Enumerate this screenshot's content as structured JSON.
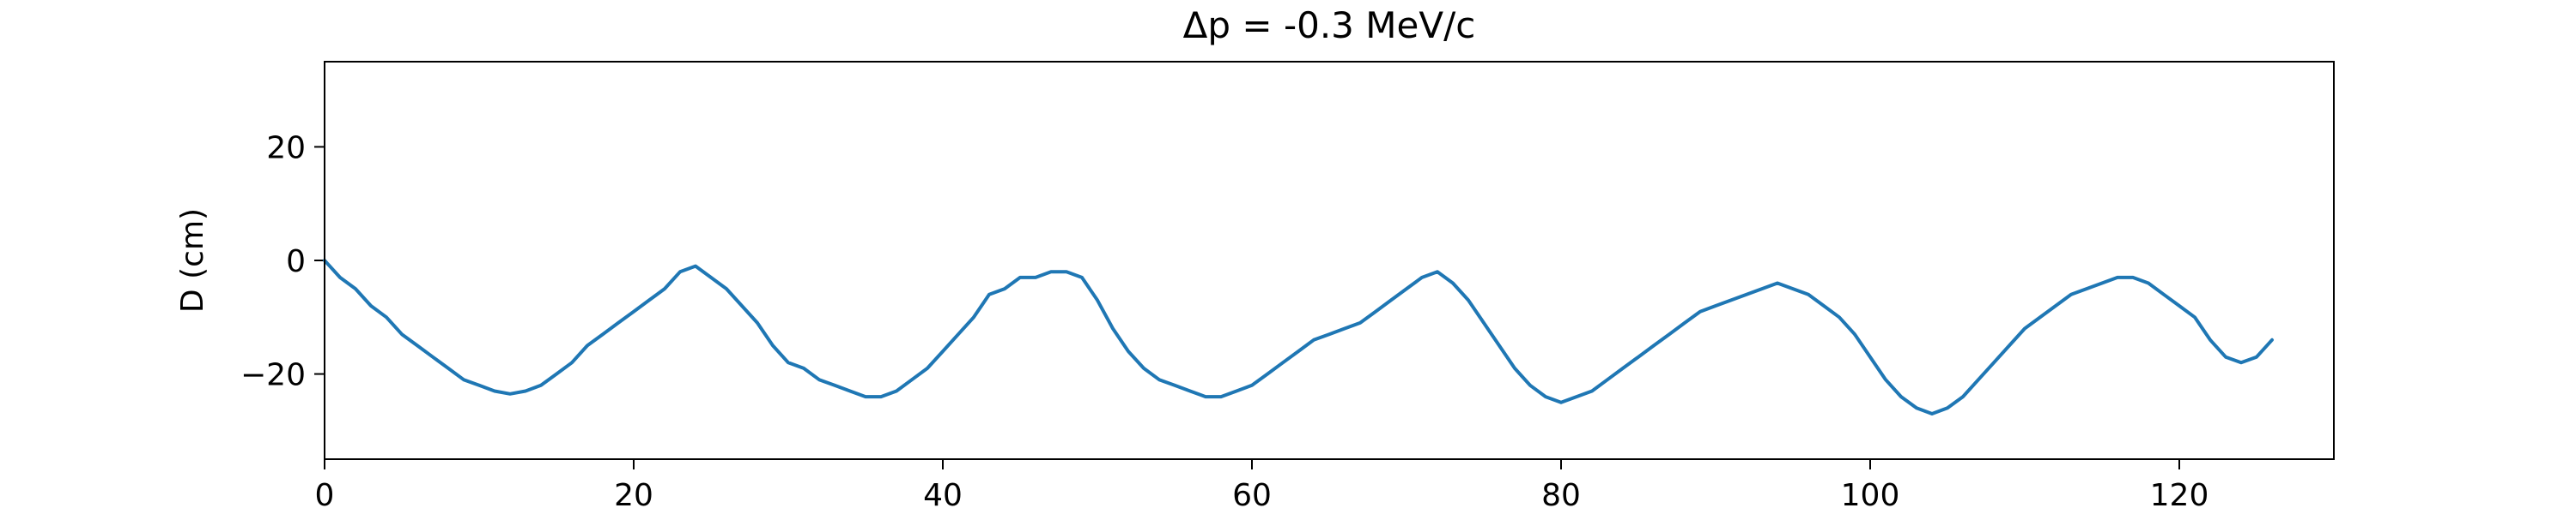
{
  "chart_data": {
    "type": "line",
    "title": "Δp = -0.3 MeV/c",
    "xlabel": "",
    "ylabel": "D (cm)",
    "xlim": [
      0,
      130
    ],
    "ylim": [
      -35,
      35
    ],
    "xticks": [
      0,
      20,
      40,
      60,
      80,
      100,
      120
    ],
    "xtick_labels": [
      "0",
      "20",
      "40",
      "60",
      "80",
      "100",
      "120"
    ],
    "yticks": [
      -20,
      0,
      20
    ],
    "ytick_labels": [
      "−20",
      "0",
      "20"
    ],
    "grid": false,
    "legend": "none",
    "series": [
      {
        "color": "#1f77b4",
        "x": [
          0,
          1,
          2,
          3,
          4,
          5,
          6,
          7,
          8,
          9,
          10,
          11,
          12,
          13,
          14,
          15,
          16,
          17,
          18,
          19,
          20,
          21,
          22,
          23,
          24,
          25,
          26,
          27,
          28,
          29,
          30,
          31,
          32,
          33,
          34,
          35,
          36,
          37,
          38,
          39,
          40,
          41,
          42,
          43,
          44,
          45,
          46,
          47,
          48,
          49,
          50,
          51,
          52,
          53,
          54,
          55,
          56,
          57,
          58,
          59,
          60,
          61,
          62,
          63,
          64,
          65,
          66,
          67,
          68,
          69,
          70,
          71,
          72,
          73,
          74,
          75,
          76,
          77,
          78,
          79,
          80,
          81,
          82,
          83,
          84,
          85,
          86,
          87,
          88,
          89,
          90,
          91,
          92,
          93,
          94,
          95,
          96,
          97,
          98,
          99,
          100,
          101,
          102,
          103,
          104,
          105,
          106,
          107,
          108,
          109,
          110,
          111,
          112,
          113,
          114,
          115,
          116,
          117,
          118,
          119,
          120,
          121,
          122,
          123,
          124,
          125,
          126
        ],
        "y": [
          0,
          -3,
          -5,
          -8,
          -10,
          -13,
          -15,
          -17,
          -19,
          -21,
          -22,
          -23,
          -23.5,
          -23,
          -22,
          -20,
          -18,
          -15,
          -13,
          -11,
          -9,
          -7,
          -5,
          -2,
          -1,
          -3,
          -5,
          -8,
          -11,
          -15,
          -18,
          -19,
          -21,
          -22,
          -23,
          -24,
          -24,
          -23,
          -21,
          -19,
          -16,
          -13,
          -10,
          -6,
          -5,
          -3,
          -3,
          -2,
          -2,
          -3,
          -7,
          -12,
          -16,
          -19,
          -21,
          -22,
          -23,
          -24,
          -24,
          -23,
          -22,
          -20,
          -18,
          -16,
          -14,
          -13,
          -12,
          -11,
          -9,
          -7,
          -5,
          -3,
          -2,
          -4,
          -7,
          -11,
          -15,
          -19,
          -22,
          -24,
          -25,
          -24,
          -23,
          -21,
          -19,
          -17,
          -15,
          -13,
          -11,
          -9,
          -8,
          -7,
          -6,
          -5,
          -4,
          -5,
          -6,
          -8,
          -10,
          -13,
          -17,
          -21,
          -24,
          -26,
          -27,
          -26,
          -24,
          -21,
          -18,
          -15,
          -12,
          -10,
          -8,
          -6,
          -5,
          -4,
          -3,
          -3,
          -4,
          -6,
          -8,
          -10,
          -14,
          -17,
          -18,
          -17,
          -14
        ]
      }
    ]
  }
}
